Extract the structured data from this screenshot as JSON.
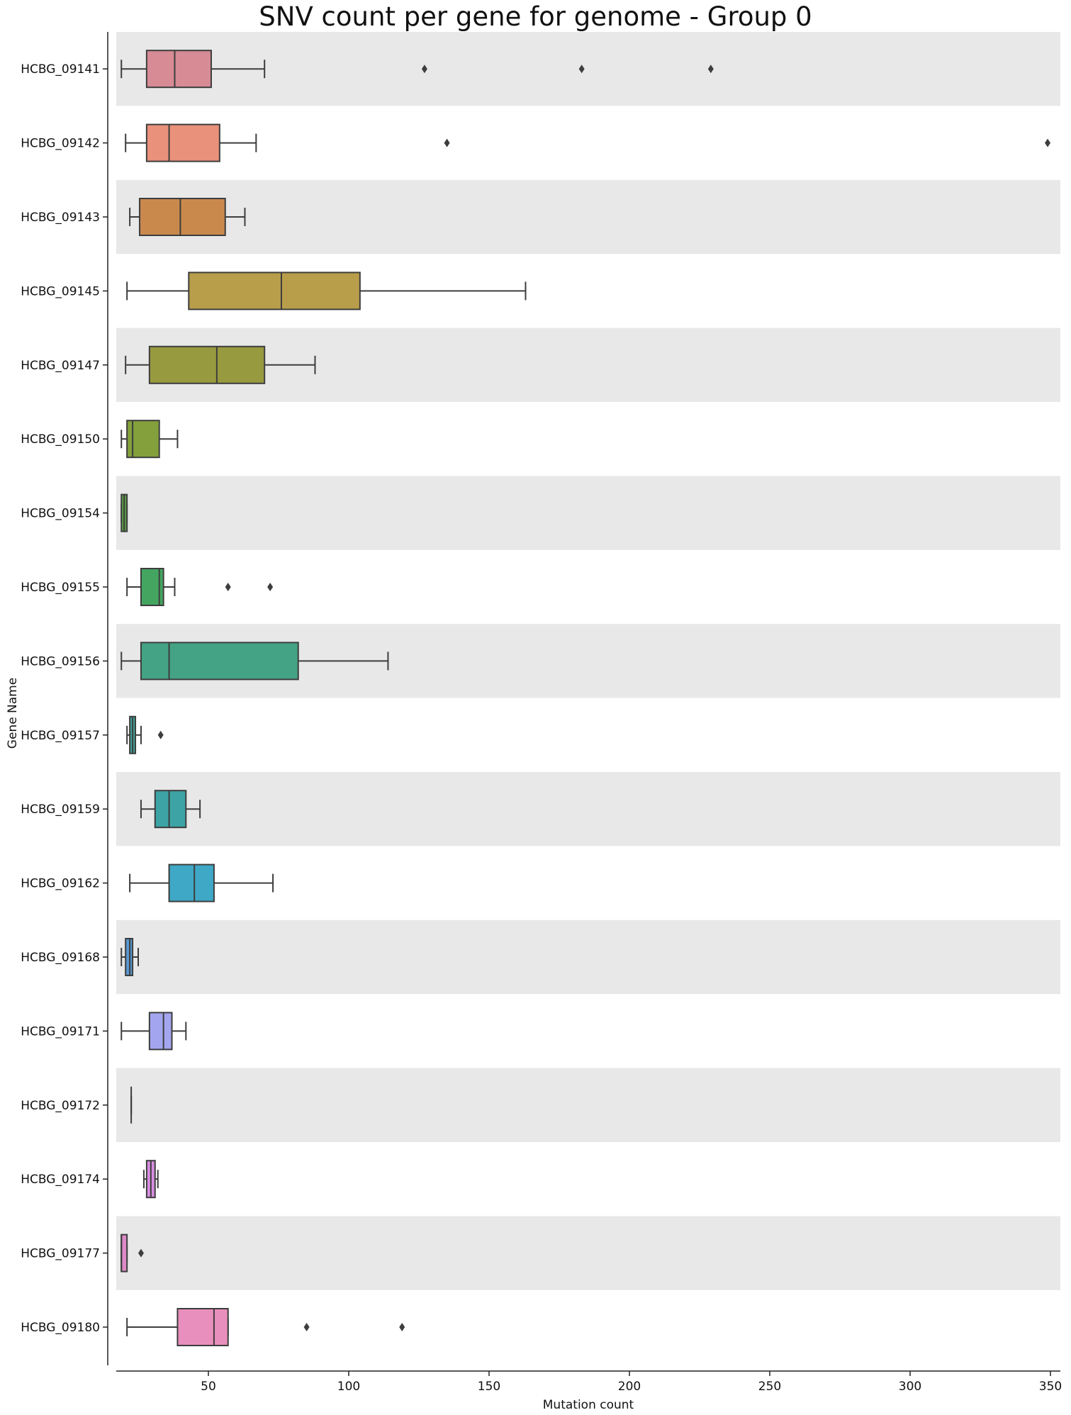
{
  "chart_data": {
    "type": "box",
    "orientation": "horizontal",
    "title": "SNV count per gene for genome - Group 0",
    "xlabel": "Mutation count",
    "ylabel": "Gene Name",
    "xlim": [
      16,
      351
    ],
    "xticks": [
      50,
      100,
      150,
      200,
      250,
      300,
      350
    ],
    "grid": false,
    "alternate_row_shading": true,
    "categories": [
      "HCBG_09141",
      "HCBG_09142",
      "HCBG_09143",
      "HCBG_09145",
      "HCBG_09147",
      "HCBG_09150",
      "HCBG_09154",
      "HCBG_09155",
      "HCBG_09156",
      "HCBG_09157",
      "HCBG_09159",
      "HCBG_09162",
      "HCBG_09168",
      "HCBG_09171",
      "HCBG_09172",
      "HCBG_09174",
      "HCBG_09177",
      "HCBG_09180"
    ],
    "boxes": [
      {
        "whisker_low": 19,
        "q1": 28,
        "median": 38,
        "q3": 51,
        "whisker_high": 70,
        "outliers": [
          127,
          183,
          229
        ],
        "color": "#d68b95"
      },
      {
        "whisker_low": 20.5,
        "q1": 28,
        "median": 36,
        "q3": 54,
        "whisker_high": 67,
        "outliers": [
          135,
          349
        ],
        "color": "#e9917a"
      },
      {
        "whisker_low": 22,
        "q1": 25.5,
        "median": 40,
        "q3": 56,
        "whisker_high": 63,
        "outliers": [],
        "color": "#c9894d"
      },
      {
        "whisker_low": 21,
        "q1": 43,
        "median": 76,
        "q3": 104,
        "whisker_high": 163,
        "outliers": [],
        "color": "#b89e4b"
      },
      {
        "whisker_low": 20.5,
        "q1": 29,
        "median": 53,
        "q3": 70,
        "whisker_high": 88,
        "outliers": [],
        "color": "#989a40"
      },
      {
        "whisker_low": 19,
        "q1": 21,
        "median": 23,
        "q3": 32.5,
        "whisker_high": 39,
        "outliers": [],
        "color": "#84a03c"
      },
      {
        "whisker_low": 19,
        "q1": 19,
        "median": 20,
        "q3": 21,
        "whisker_high": 21,
        "outliers": [],
        "color": "#5aa046"
      },
      {
        "whisker_low": 21,
        "q1": 26,
        "median": 32.5,
        "q3": 34,
        "whisker_high": 38,
        "outliers": [
          57,
          72
        ],
        "color": "#44a561"
      },
      {
        "whisker_low": 19,
        "q1": 26,
        "median": 36,
        "q3": 82,
        "whisker_high": 114,
        "outliers": [],
        "color": "#44a384"
      },
      {
        "whisker_low": 21,
        "q1": 22,
        "median": 23,
        "q3": 24,
        "whisker_high": 26,
        "outliers": [
          33
        ],
        "color": "#40a398"
      },
      {
        "whisker_low": 26,
        "q1": 31,
        "median": 36,
        "q3": 42,
        "whisker_high": 47,
        "outliers": [],
        "color": "#3ea3a5"
      },
      {
        "whisker_low": 22,
        "q1": 36,
        "median": 45,
        "q3": 52,
        "whisker_high": 73,
        "outliers": [],
        "color": "#3fa8c6"
      },
      {
        "whisker_low": 19,
        "q1": 20.5,
        "median": 22,
        "q3": 23,
        "whisker_high": 25,
        "outliers": [],
        "color": "#5a99d3"
      },
      {
        "whisker_low": 19,
        "q1": 29,
        "median": 34,
        "q3": 37,
        "whisker_high": 42,
        "outliers": [],
        "color": "#a3a6ee"
      },
      {
        "whisker_low": 22.5,
        "q1": 22.5,
        "median": 22.5,
        "q3": 22.5,
        "whisker_high": 22.5,
        "outliers": [],
        "color": "#c49ae6"
      },
      {
        "whisker_low": 27,
        "q1": 28,
        "median": 29.5,
        "q3": 31,
        "whisker_high": 32,
        "outliers": [],
        "color": "#d78ee0"
      },
      {
        "whisker_low": 19,
        "q1": 19,
        "median": 19,
        "q3": 21,
        "whisker_high": 21,
        "outliers": [
          26
        ],
        "color": "#dd8ac7"
      },
      {
        "whisker_low": 21,
        "q1": 39,
        "median": 52,
        "q3": 57,
        "whisker_high": 57,
        "outliers": [
          85,
          119
        ],
        "color": "#e88fbd"
      }
    ]
  }
}
